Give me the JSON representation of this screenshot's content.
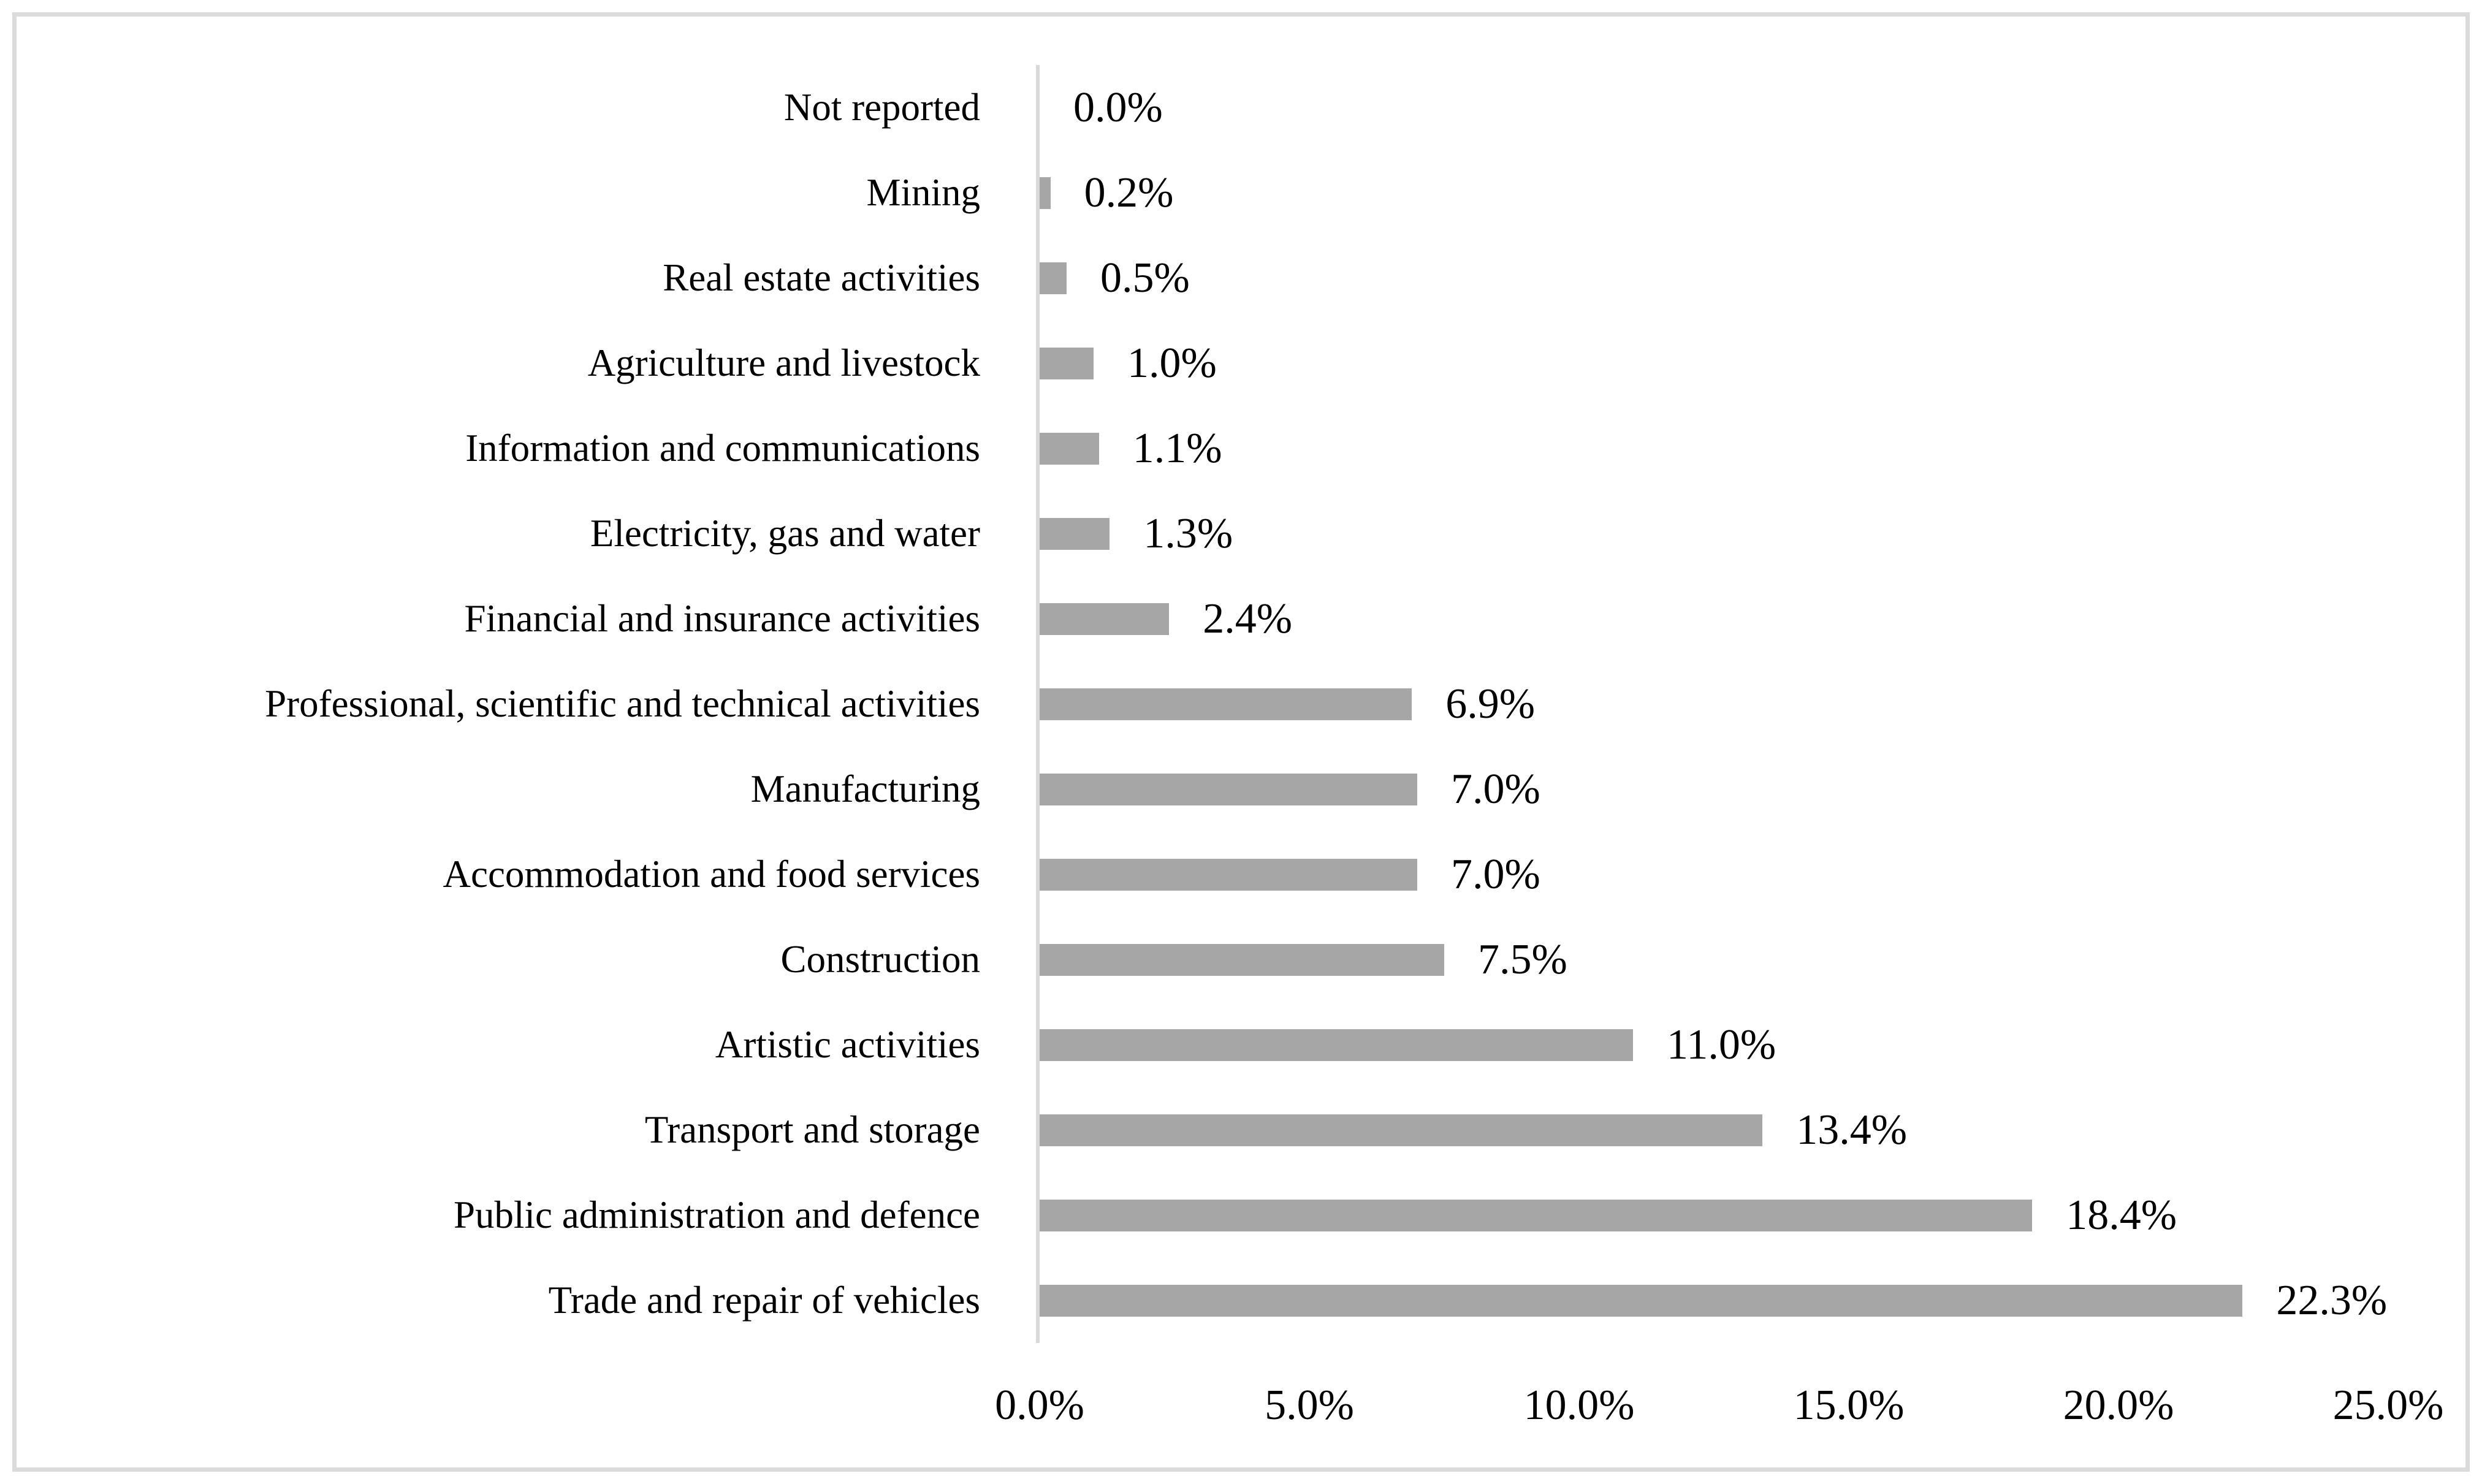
{
  "chart_data": {
    "type": "bar",
    "orientation": "horizontal",
    "title": "",
    "xlabel": "",
    "ylabel": "",
    "grid": false,
    "legend": null,
    "xlim": [
      0,
      25
    ],
    "x_ticks": [
      "0.0%",
      "5.0%",
      "10.0%",
      "15.0%",
      "20.0%",
      "25.0%"
    ],
    "categories": [
      "Not reported",
      "Mining",
      "Real estate activities",
      "Agriculture and livestock",
      "Information and communications",
      "Electricity, gas and water",
      "Financial and insurance activities",
      "Professional, scientific and technical activities",
      "Manufacturing",
      "Accommodation and food services",
      "Construction",
      "Artistic activities",
      "Transport and storage",
      "Public administration and defence",
      "Trade and repair of vehicles"
    ],
    "values": [
      0.0,
      0.2,
      0.5,
      1.0,
      1.1,
      1.3,
      2.4,
      6.9,
      7.0,
      7.0,
      7.5,
      11.0,
      13.4,
      18.4,
      22.3
    ],
    "value_labels": [
      "0.0%",
      "0.2%",
      "0.5%",
      "1.0%",
      "1.1%",
      "1.3%",
      "2.4%",
      "6.9%",
      "7.0%",
      "7.0%",
      "7.5%",
      "11.0%",
      "13.4%",
      "18.4%",
      "22.3%"
    ],
    "colors": {
      "bar": "#a6a6a6",
      "axis_line": "#d9d9d9",
      "frame_border": "#dbdbdb",
      "text": "#000000"
    }
  }
}
